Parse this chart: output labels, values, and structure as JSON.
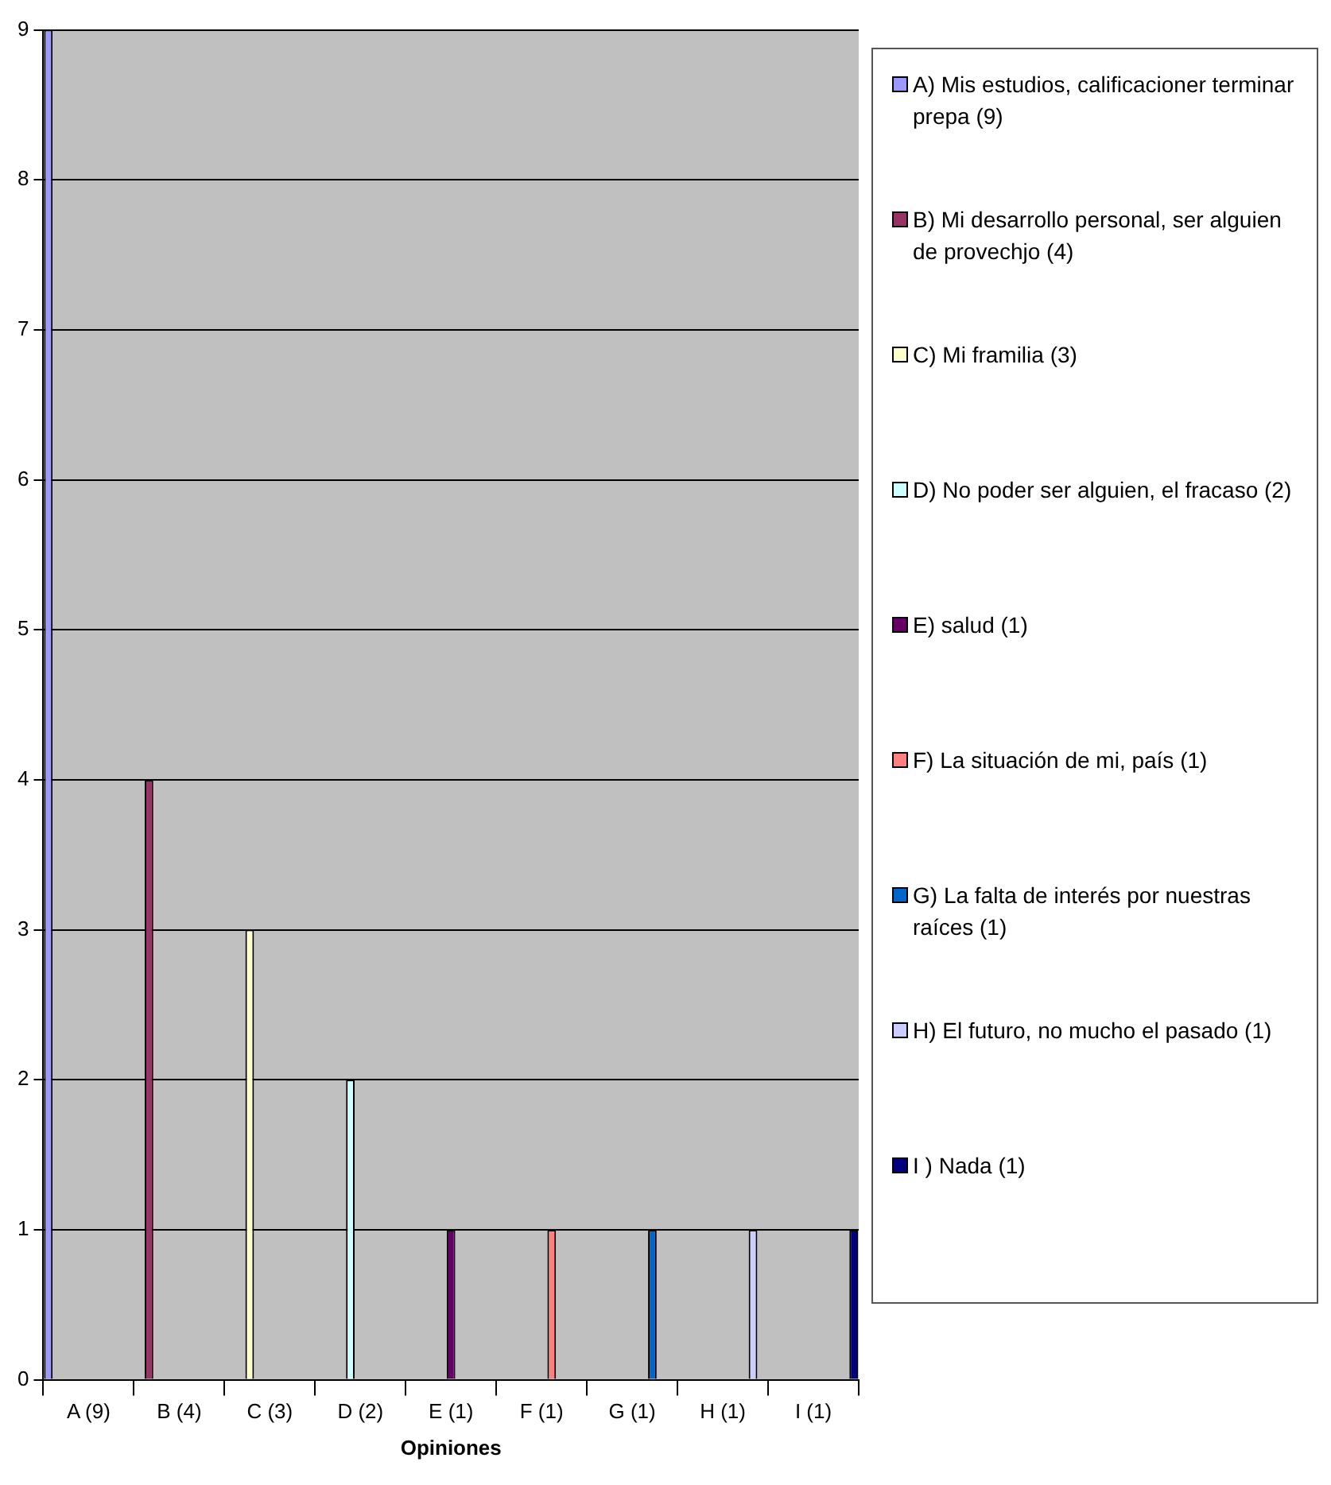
{
  "chart_data": {
    "type": "bar",
    "xlabel": "Opiniones",
    "categories": [
      "A (9)",
      "B (4)",
      "C (3)",
      "D (2)",
      "E (1)",
      "F (1)",
      "G (1)",
      "H (1)",
      "I (1)"
    ],
    "series": [
      {
        "name": "A) Mis estudios, calificacioner terminar prepa (9)",
        "color": "#9999ff",
        "values": [
          9,
          null,
          null,
          null,
          null,
          null,
          null,
          null,
          null
        ]
      },
      {
        "name": "B) Mi desarrollo personal, ser alguien de provechjo (4)",
        "color": "#993366",
        "values": [
          null,
          4,
          null,
          null,
          null,
          null,
          null,
          null,
          null
        ]
      },
      {
        "name": "C) Mi framilia (3)",
        "color": "#ffffcc",
        "values": [
          null,
          null,
          3,
          null,
          null,
          null,
          null,
          null,
          null
        ]
      },
      {
        "name": "D) No poder ser alguien, el fracaso (2)",
        "color": "#ccffff",
        "values": [
          null,
          null,
          null,
          2,
          null,
          null,
          null,
          null,
          null
        ]
      },
      {
        "name": "E) salud (1)",
        "color": "#660066",
        "values": [
          null,
          null,
          null,
          null,
          1,
          null,
          null,
          null,
          null
        ]
      },
      {
        "name": "F) La situación de mi, país (1)",
        "color": "#ff8080",
        "values": [
          null,
          null,
          null,
          null,
          null,
          1,
          null,
          null,
          null
        ]
      },
      {
        "name": "G) La falta de interés por nuestras raíces (1)",
        "color": "#0066cc",
        "values": [
          null,
          null,
          null,
          null,
          null,
          null,
          1,
          null,
          null
        ]
      },
      {
        "name": "H) El futuro, no mucho el pasado (1)",
        "color": "#ccccff",
        "values": [
          null,
          null,
          null,
          null,
          null,
          null,
          null,
          1,
          null
        ]
      },
      {
        "name": "I ) Nada (1)",
        "color": "#000080",
        "values": [
          null,
          null,
          null,
          null,
          null,
          null,
          null,
          null,
          1
        ]
      }
    ],
    "ylim": [
      0,
      9
    ],
    "yticks": [
      0,
      1,
      2,
      3,
      4,
      5,
      6,
      7,
      8,
      9
    ],
    "grid": "y",
    "legend": "right"
  }
}
